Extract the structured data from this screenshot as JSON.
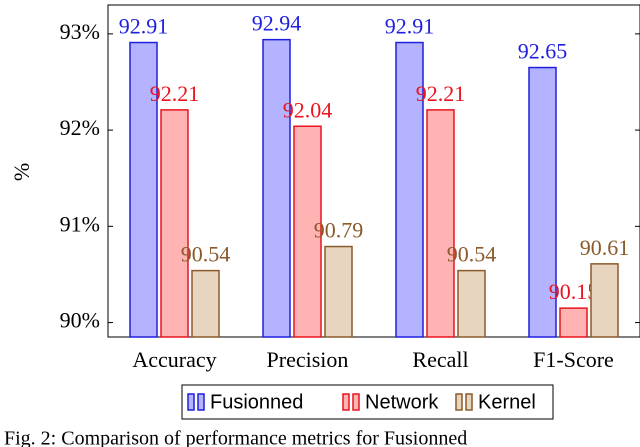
{
  "chart_data": {
    "type": "bar",
    "ylabel": "%",
    "categories": [
      "Accuracy",
      "Precision",
      "Recall",
      "F1-Score"
    ],
    "series": [
      {
        "name": "Fusionned",
        "color": "#1f1fe0",
        "fill": "#b3b3ff",
        "values": [
          92.91,
          92.94,
          92.91,
          92.65
        ]
      },
      {
        "name": "Network",
        "color": "#e8141e",
        "fill": "#ffb3b3",
        "values": [
          92.21,
          92.04,
          92.21,
          90.15
        ]
      },
      {
        "name": "Kernel",
        "color": "#8b5a2b",
        "fill": "#e8d5c0",
        "values": [
          90.54,
          90.79,
          90.54,
          90.61
        ]
      }
    ],
    "ylim": [
      89.85,
      93.3
    ],
    "yticks": [
      {
        "value": 90,
        "label": "90%"
      },
      {
        "value": 91,
        "label": "91%"
      },
      {
        "value": 92,
        "label": "92%"
      },
      {
        "value": 93,
        "label": "93%"
      }
    ],
    "caption": "Fig. 2: Comparison of performance metrics for Fusionned"
  }
}
